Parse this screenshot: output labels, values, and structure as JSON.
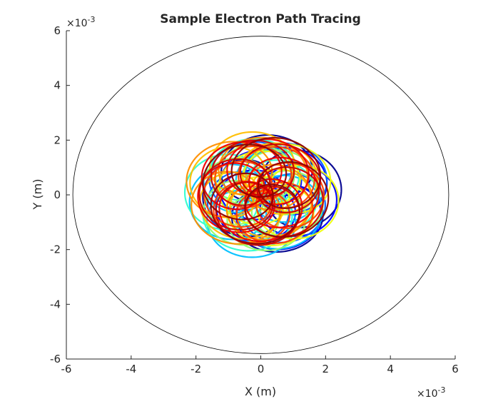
{
  "chart_data": {
    "type": "line",
    "title": "Sample Electron Path Tracing",
    "xlabel": "X (m)",
    "ylabel": "Y (m)",
    "xlim": [
      -6,
      6
    ],
    "ylim": [
      -6,
      6
    ],
    "axis_scale_exponent_label": "×10",
    "axis_scale_exponent_power": "-3",
    "x_ticks": [
      -6,
      -4,
      -2,
      0,
      2,
      4,
      6
    ],
    "y_ticks": [
      -6,
      -4,
      -2,
      0,
      2,
      4,
      6
    ],
    "x_tick_labels": [
      "-6",
      "-4",
      "-2",
      "0",
      "2",
      "4",
      "6"
    ],
    "y_tick_labels": [
      "-6",
      "-4",
      "-2",
      "0",
      "2",
      "4",
      "6"
    ],
    "grid": false,
    "boundary": {
      "shape": "circle",
      "center": [
        0,
        0
      ],
      "radius": 5.8,
      "color": "#000000"
    },
    "series": [
      {
        "color": "#00008f",
        "center": [
          0.35,
          0.05
        ],
        "radius": 2.15,
        "loops": 5,
        "loop_radius": 1.05,
        "phase": 0.2
      },
      {
        "color": "#0000ff",
        "center": [
          0.45,
          -0.1
        ],
        "radius": 1.9,
        "loops": 6,
        "loop_radius": 1.1,
        "phase": 1.1
      },
      {
        "color": "#0060ff",
        "center": [
          0.2,
          0.1
        ],
        "radius": 2.0,
        "loops": 5,
        "loop_radius": 1.0,
        "phase": 2.3
      },
      {
        "color": "#00c0ff",
        "center": [
          -0.1,
          -0.2
        ],
        "radius": 2.1,
        "loops": 6,
        "loop_radius": 1.1,
        "phase": 0.7
      },
      {
        "color": "#30ffcf",
        "center": [
          -0.3,
          0.0
        ],
        "radius": 2.05,
        "loops": 5,
        "loop_radius": 1.05,
        "phase": 3.0
      },
      {
        "color": "#90ff6f",
        "center": [
          0.0,
          -0.1
        ],
        "radius": 1.95,
        "loops": 7,
        "loop_radius": 1.0,
        "phase": 1.8
      },
      {
        "color": "#efff10",
        "center": [
          0.55,
          0.0
        ],
        "radius": 1.9,
        "loops": 5,
        "loop_radius": 1.1,
        "phase": 2.7
      },
      {
        "color": "#ffbf00",
        "center": [
          -0.2,
          0.3
        ],
        "radius": 2.0,
        "loops": 6,
        "loop_radius": 1.05,
        "phase": 0.4
      },
      {
        "color": "#ff8f00",
        "center": [
          -0.35,
          0.15
        ],
        "radius": 2.05,
        "loops": 5,
        "loop_radius": 1.1,
        "phase": 4.1
      },
      {
        "color": "#ff4000",
        "center": [
          0.1,
          0.0
        ],
        "radius": 1.85,
        "loops": 7,
        "loop_radius": 1.0,
        "phase": 5.2
      },
      {
        "color": "#ef0000",
        "center": [
          -0.1,
          0.2
        ],
        "radius": 1.9,
        "loops": 6,
        "loop_radius": 1.05,
        "phase": 3.6
      },
      {
        "color": "#cf0000",
        "center": [
          0.05,
          0.1
        ],
        "radius": 1.95,
        "loops": 6,
        "loop_radius": 1.05,
        "phase": 2.0
      },
      {
        "color": "#8f0000",
        "center": [
          0.15,
          0.15
        ],
        "radius": 2.0,
        "loops": 5,
        "loop_radius": 1.1,
        "phase": 5.8
      }
    ]
  }
}
